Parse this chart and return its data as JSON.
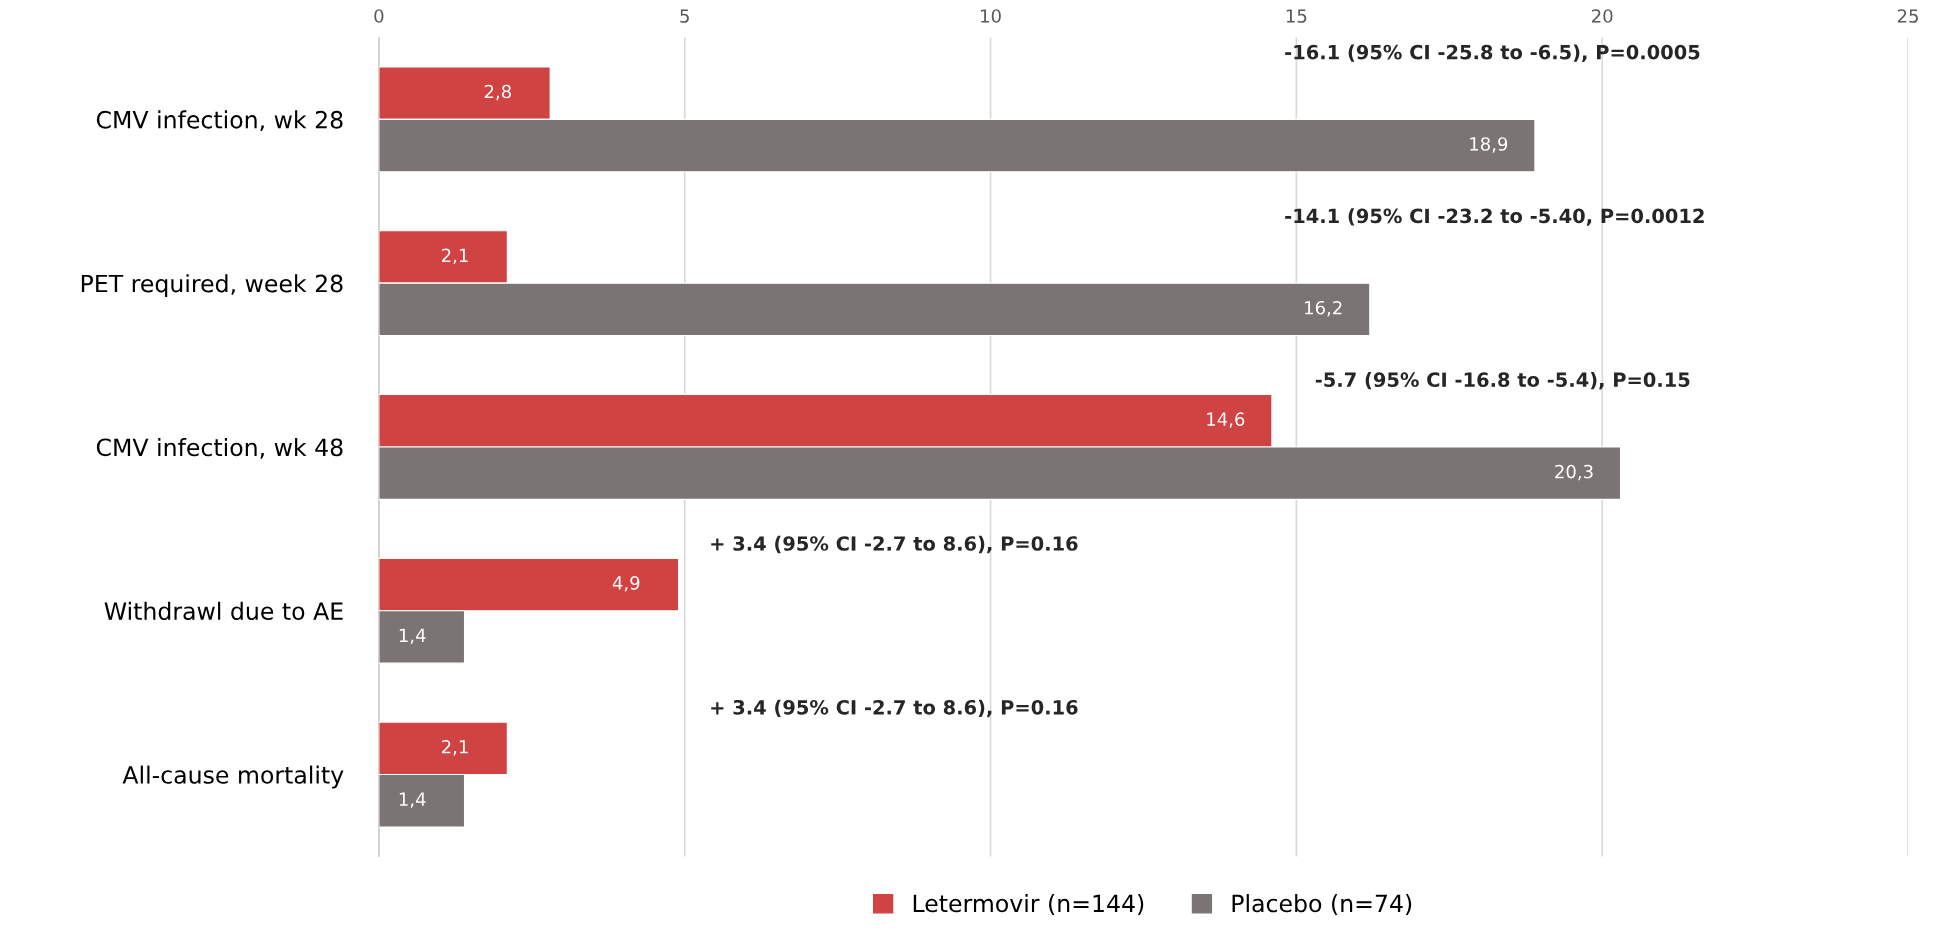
{
  "chart_data": {
    "type": "bar",
    "orientation": "horizontal",
    "categories": [
      "CMV infection, wk 28",
      "PET required, week 28",
      "CMV infection, wk 48",
      "Withdrawl due to AE",
      "All-cause mortality"
    ],
    "series": [
      {
        "name": "Letermovir (n=144)",
        "color": "#d04343",
        "values": [
          2.8,
          2.1,
          14.6,
          4.9,
          2.1
        ],
        "value_labels": [
          "2,8",
          "2,1",
          "14,6",
          "4,9",
          "2,1"
        ]
      },
      {
        "name": "Placebo (n=74)",
        "color": "#7a7574",
        "values": [
          18.9,
          16.2,
          20.3,
          1.4,
          1.4
        ],
        "value_labels": [
          "18,9",
          "16,2",
          "20,3",
          "1,4",
          "1,4"
        ]
      }
    ],
    "xlim": [
      0,
      25
    ],
    "xticks": [
      0,
      5,
      10,
      15,
      20,
      25
    ],
    "grid": "x",
    "legend": "bottom",
    "annotations": [
      "-16.1 (95% CI -25.8 to -6.5), P=0.0005",
      "-14.1 (95% CI -23.2 to -5.40, P=0.0012",
      "-5.7 (95% CI -16.8 to -5.4), P=0.15",
      "+ 3.4 (95% CI -2.7 to 8.6), P=0.16",
      "+ 3.4 (95% CI -2.7 to 8.6), P=0.16"
    ]
  }
}
